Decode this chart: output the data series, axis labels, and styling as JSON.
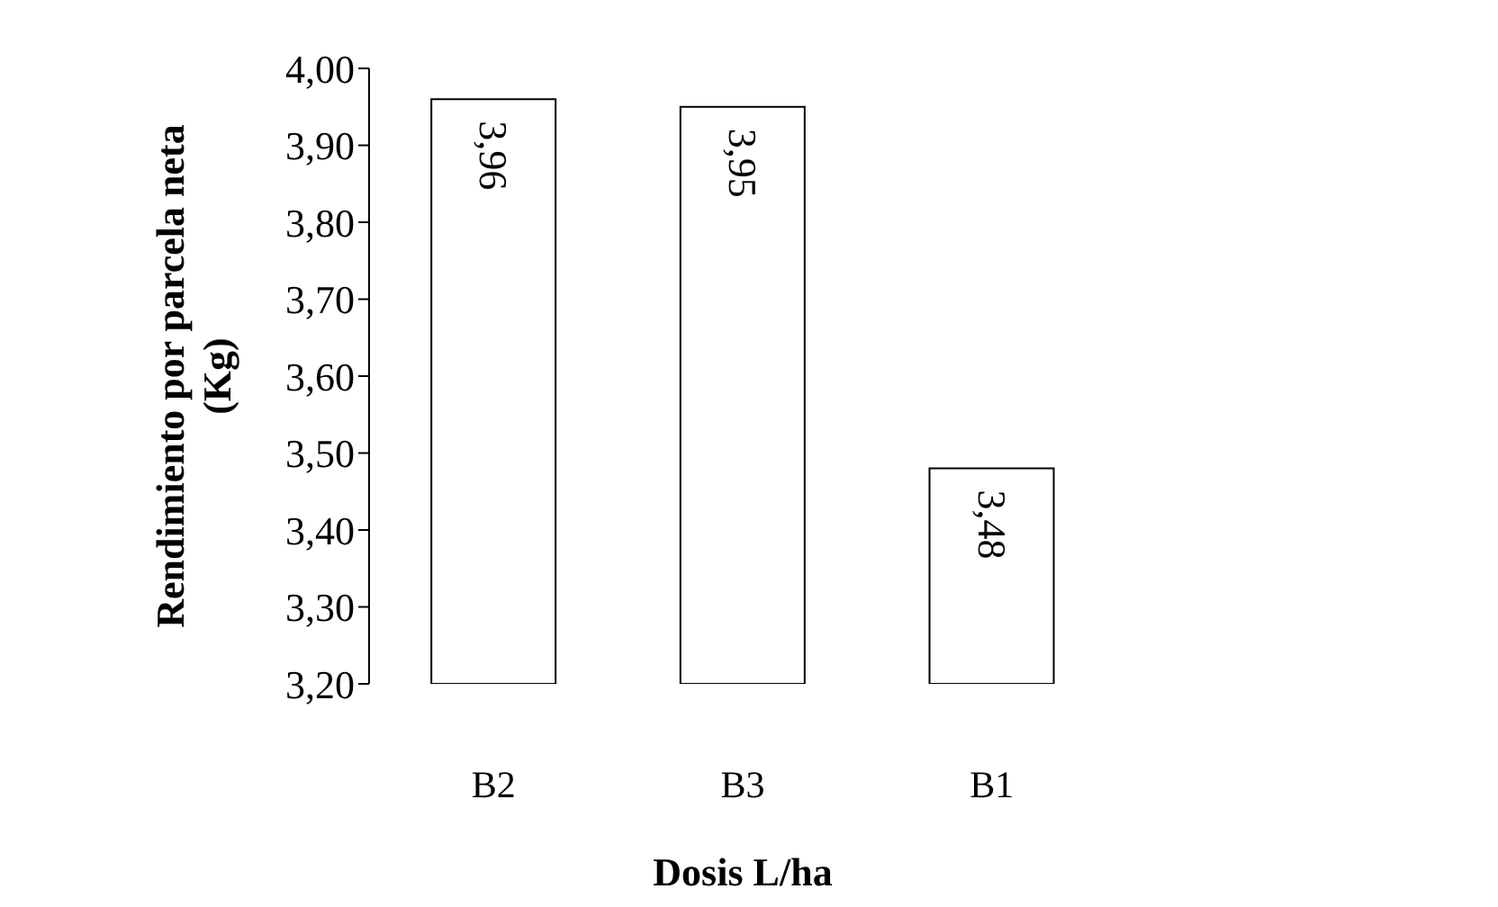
{
  "chart_data": {
    "type": "bar",
    "xlabel": "Dosis L/ha",
    "ylabel": "Rendimiento por parcela neta (Kg)",
    "categories": [
      "B2",
      "B3",
      "B1"
    ],
    "values": [
      3.96,
      3.95,
      3.48
    ],
    "color": "#ffffff",
    "value_labels": [
      "3,96",
      "3,95",
      "3,48"
    ],
    "ylim": [
      3.2,
      4.0
    ],
    "yticks": [
      {
        "value": 3.2,
        "label": "3,20"
      },
      {
        "value": 3.3,
        "label": "3,30"
      },
      {
        "value": 3.4,
        "label": "3,40"
      },
      {
        "value": 3.5,
        "label": "3,50"
      },
      {
        "value": 3.6,
        "label": "3,60"
      },
      {
        "value": 3.7,
        "label": "3,70"
      },
      {
        "value": 3.8,
        "label": "3,80"
      },
      {
        "value": 3.9,
        "label": "3,90"
      },
      {
        "value": 4.0,
        "label": "4,00"
      }
    ],
    "grid": false,
    "legend": false
  }
}
